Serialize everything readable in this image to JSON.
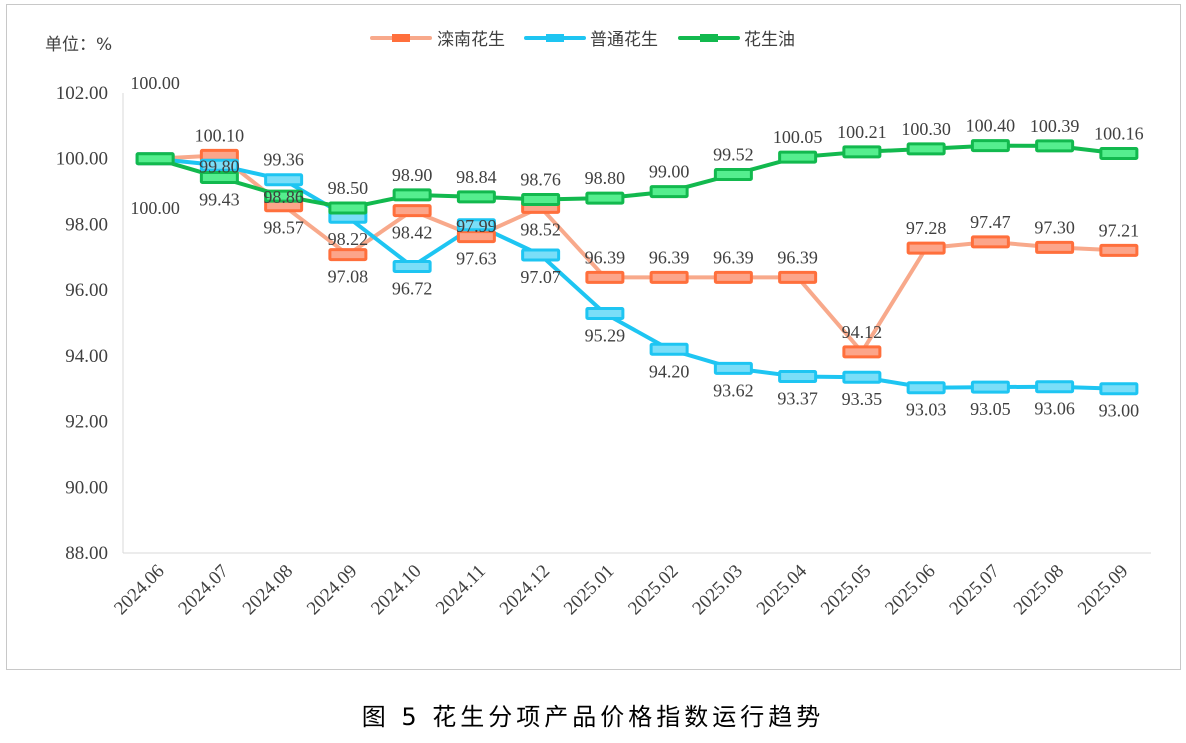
{
  "unit_label": "单位：%",
  "caption": "图 5  花生分项产品价格指数运行趋势",
  "chart_data": {
    "type": "line",
    "title": "花生分项产品价格指数运行趋势",
    "xlabel": "",
    "ylabel": "单位：%",
    "ylim": [
      88,
      102
    ],
    "yticks": [
      "102.00",
      "100.00",
      "98.00",
      "96.00",
      "94.00",
      "92.00",
      "90.00",
      "88.00"
    ],
    "ytick_values": [
      102,
      100,
      98,
      96,
      94,
      92,
      90,
      88
    ],
    "categories": [
      "2024.06",
      "2024.07",
      "2024.08",
      "2024.09",
      "2024.10",
      "2024.11",
      "2024.12",
      "2025.01",
      "2025.02",
      "2025.03",
      "2025.04",
      "2025.05",
      "2025.06",
      "2025.07",
      "2025.08",
      "2025.09"
    ],
    "legend_position": "top",
    "grid": false,
    "series": [
      {
        "name": "滦南花生",
        "line_color": "#F8A98B",
        "marker_color": "#FF6F3C",
        "marker_fill": "#FCA58A",
        "values": [
          100.0,
          100.1,
          98.57,
          97.08,
          98.42,
          97.63,
          98.52,
          96.39,
          96.39,
          96.39,
          96.39,
          94.12,
          97.28,
          97.47,
          97.3,
          97.21
        ],
        "labels": [
          "100.00",
          "100.10",
          "98.57",
          "97.08",
          "98.42",
          "97.63",
          "98.52",
          "96.39",
          "96.39",
          "96.39",
          "96.39",
          "94.12",
          "97.28",
          "97.47",
          "97.30",
          "97.21"
        ],
        "label_side": [
          "above",
          "above",
          "below",
          "below",
          "below",
          "below",
          "below",
          "above",
          "above",
          "above",
          "above",
          "above",
          "above",
          "above",
          "above",
          "above"
        ]
      },
      {
        "name": "普通花生",
        "line_color": "#1EC5F2",
        "marker_color": "#1EC5F2",
        "marker_fill": "#7ADEF8",
        "values": [
          100.0,
          99.8,
          99.36,
          98.22,
          96.72,
          97.99,
          97.07,
          95.29,
          94.2,
          93.62,
          93.37,
          93.35,
          93.03,
          93.05,
          93.06,
          93.0
        ],
        "labels": [
          "100.00",
          "99.80",
          "99.36",
          "98.22",
          "96.72",
          "97.99",
          "97.07",
          "95.29",
          "94.20",
          "93.62",
          "93.37",
          "93.35",
          "93.03",
          "93.05",
          "93.06",
          "93.00"
        ],
        "label_side": [
          "below",
          "center",
          "above",
          "below",
          "below",
          "center",
          "below",
          "below",
          "below",
          "below",
          "below",
          "below",
          "below",
          "below",
          "below",
          "below"
        ]
      },
      {
        "name": "花生油",
        "line_color": "#12B94E",
        "marker_color": "#12B94E",
        "marker_fill": "#55EE8E",
        "values": [
          100.0,
          99.43,
          98.86,
          98.5,
          98.9,
          98.84,
          98.76,
          98.8,
          99.0,
          99.52,
          100.05,
          100.21,
          100.3,
          100.4,
          100.39,
          100.16
        ],
        "labels": [
          "100.00",
          "99.43",
          "98.86",
          "98.50",
          "98.90",
          "98.84",
          "98.76",
          "98.80",
          "99.00",
          "99.52",
          "100.05",
          "100.21",
          "100.30",
          "100.40",
          "100.39",
          "100.16"
        ],
        "label_side": [
          "none",
          "below",
          "center",
          "above",
          "above",
          "above",
          "above",
          "above",
          "above",
          "above",
          "above",
          "above",
          "above",
          "above",
          "above",
          "above"
        ]
      }
    ]
  }
}
